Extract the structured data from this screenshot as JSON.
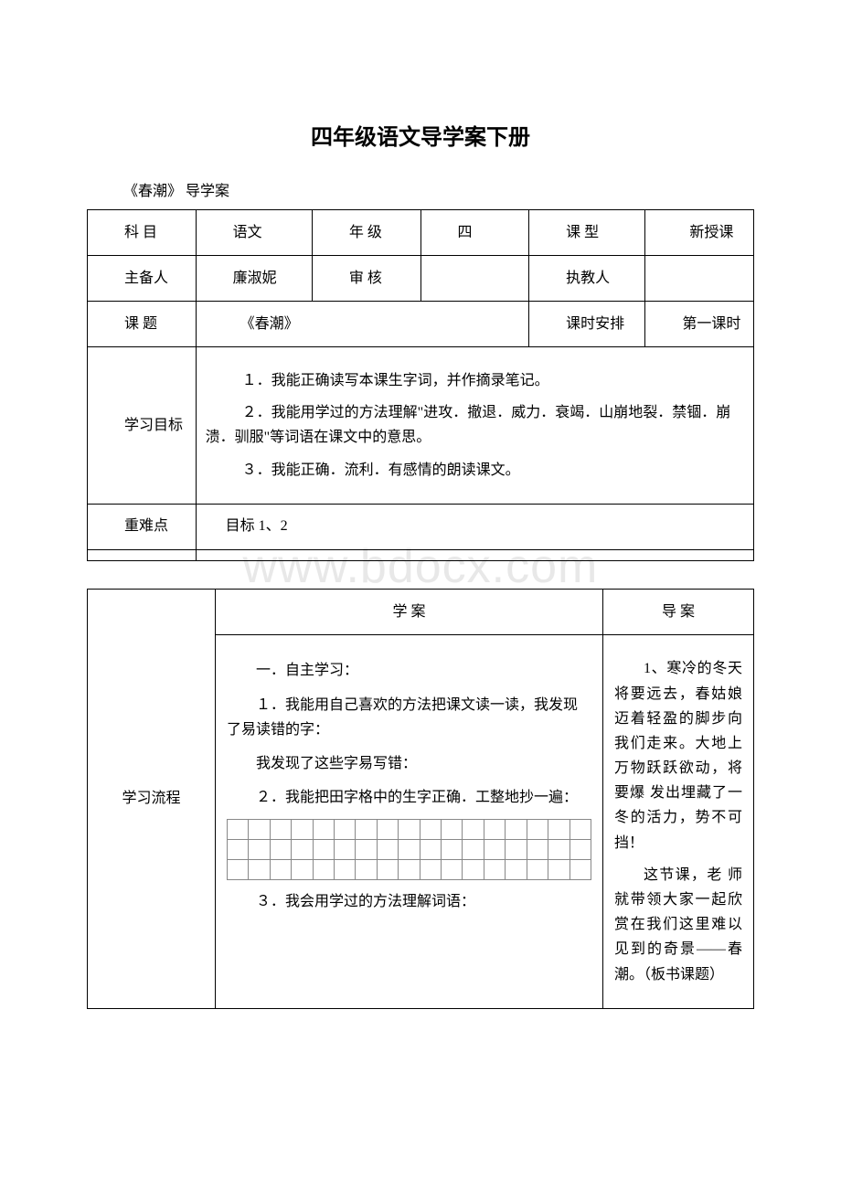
{
  "watermark": "www.bdocx.com",
  "title": "四年级语文导学案下册",
  "subtitle": "《春潮》   导学案",
  "table1": {
    "r1c1": "科 目",
    "r1c2": "语文",
    "r1c3": "年 级",
    "r1c4": "四",
    "r1c5": "课 型",
    "r1c6": "新授课",
    "r2c1": "主备人",
    "r2c2": "廉淑妮",
    "r2c3": "审 核",
    "r2c4": "",
    "r2c5": "执教人",
    "r2c6": "",
    "r3c1": "课 题",
    "r3c2": "《春潮》",
    "r3c5": "课时安排",
    "r3c6": "第一课时",
    "r4c1": "学习目标",
    "goal1": "１．我能正确读写本课生字词，并作摘录笔记。",
    "goal2": "２．我能用学过的方法理解\"进攻．撤退．威力．衰竭．山崩地裂．禁锢．崩溃．驯服\"等词语在课文中的意思。",
    "goal3": "３．我能正确．流利．有感情的朗读课文。",
    "r5c1": "重难点",
    "r5c2": "目标 1、2"
  },
  "table2": {
    "header_xuean": "学  案",
    "header_daoan": "导 案",
    "flow_label": "学习流程",
    "xuean": {
      "p1": "一．自主学习：",
      "p2": "１．我能用自己喜欢的方法把课文读一读，我发现了易读错的字：",
      "p3": "我发现了这些字易写错：",
      "p4": "２．我能把田字格中的生字正确．工整地抄一遍：",
      "p5": "３．我会用学过的方法理解词语："
    },
    "daoan": {
      "p1": "1、寒冷的冬天将要远去，春姑娘迈着轻盈的脚步向我们走来。大地上万物跃跃欲动，将要爆 发出埋藏了一冬的活力，势不可挡！",
      "p2": "这节课，老 师就带领大家一起欣赏在我们这里难以见到的奇景——春潮。（板书课题）"
    }
  },
  "grid": {
    "rows": 3,
    "cols": 17
  }
}
